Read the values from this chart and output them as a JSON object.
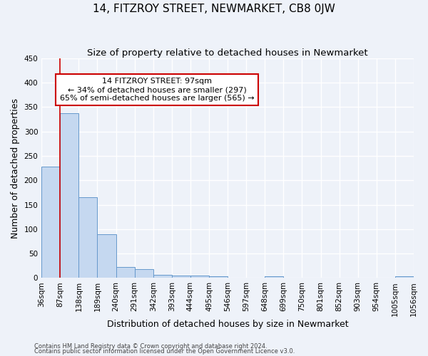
{
  "title": "14, FITZROY STREET, NEWMARKET, CB8 0JW",
  "subtitle": "Size of property relative to detached houses in Newmarket",
  "xlabel": "Distribution of detached houses by size in Newmarket",
  "ylabel": "Number of detached properties",
  "bins": [
    36,
    87,
    138,
    189,
    240,
    291,
    342,
    393,
    444,
    495,
    546,
    597,
    648,
    699,
    750,
    801,
    852,
    903,
    954,
    1005,
    1056
  ],
  "bin_labels": [
    "36sqm",
    "87sqm",
    "138sqm",
    "189sqm",
    "240sqm",
    "291sqm",
    "342sqm",
    "393sqm",
    "444sqm",
    "495sqm",
    "546sqm",
    "597sqm",
    "648sqm",
    "699sqm",
    "750sqm",
    "801sqm",
    "852sqm",
    "903sqm",
    "954sqm",
    "1005sqm",
    "1056sqm"
  ],
  "counts": [
    228,
    338,
    165,
    90,
    23,
    18,
    7,
    5,
    5,
    4,
    0,
    0,
    4,
    0,
    0,
    0,
    0,
    0,
    0,
    4,
    0
  ],
  "bar_color": "#c5d8f0",
  "bar_edge_color": "#6699cc",
  "vline_color": "#cc0000",
  "vline_x_bin": 1,
  "annotation_title": "14 FITZROY STREET: 97sqm",
  "annotation_line1": "← 34% of detached houses are smaller (297)",
  "annotation_line2": "65% of semi-detached houses are larger (565) →",
  "annotation_box_facecolor": "#ffffff",
  "annotation_box_edgecolor": "#cc0000",
  "ylim": [
    0,
    450
  ],
  "yticks": [
    0,
    50,
    100,
    150,
    200,
    250,
    300,
    350,
    400,
    450
  ],
  "footer1": "Contains HM Land Registry data © Crown copyright and database right 2024.",
  "footer2": "Contains public sector information licensed under the Open Government Licence v3.0.",
  "bg_color": "#eef2f9",
  "grid_color": "#ffffff",
  "title_fontsize": 11,
  "subtitle_fontsize": 9.5,
  "axis_label_fontsize": 9,
  "tick_fontsize": 7.5,
  "footer_fontsize": 6,
  "annotation_fontsize": 8
}
